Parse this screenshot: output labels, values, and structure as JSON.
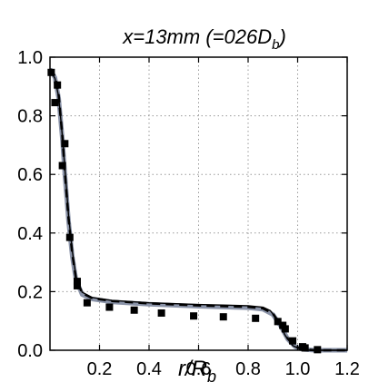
{
  "chart_data": {
    "type": "line",
    "title": {
      "main": "x=13mm (=026D",
      "sub": "b",
      "close": ")"
    },
    "xlabel": {
      "main": "r/R",
      "sub": "b"
    },
    "ylabel": "",
    "xlim": [
      0.0,
      1.2
    ],
    "ylim": [
      0.0,
      1.0
    ],
    "x_ticks": [
      0.2,
      0.4,
      0.6,
      0.8,
      1.0,
      1.2
    ],
    "x_tick_labels": [
      "0.2",
      "0.4",
      "0.6",
      "0.8",
      "1.0",
      "1.2"
    ],
    "y_ticks": [
      0.0,
      0.2,
      0.4,
      0.6,
      0.8,
      1.0
    ],
    "y_tick_labels": [
      "0.0",
      "0.2",
      "0.4",
      "0.6",
      "0.8",
      "1.0"
    ],
    "grid": true,
    "series": [
      {
        "style": "scatter-square",
        "color": "#000000",
        "points": [
          [
            0.005,
            0.948
          ],
          [
            0.02,
            0.845
          ],
          [
            0.03,
            0.905
          ],
          [
            0.05,
            0.63
          ],
          [
            0.06,
            0.705
          ],
          [
            0.08,
            0.385
          ],
          [
            0.11,
            0.22
          ],
          [
            0.11,
            0.235
          ],
          [
            0.15,
            0.162
          ],
          [
            0.24,
            0.147
          ],
          [
            0.34,
            0.137
          ],
          [
            0.45,
            0.127
          ],
          [
            0.58,
            0.117
          ],
          [
            0.7,
            0.114
          ],
          [
            0.83,
            0.109
          ],
          [
            0.92,
            0.098
          ],
          [
            0.94,
            0.085
          ],
          [
            0.95,
            0.073
          ],
          [
            0.98,
            0.032
          ],
          [
            1.02,
            0.012
          ],
          [
            1.03,
            0.008
          ],
          [
            1.08,
            0.002
          ]
        ]
      },
      {
        "style": "solid-thick",
        "color": "#8a93a8",
        "points": [
          [
            0.0,
            0.96
          ],
          [
            0.02,
            0.93
          ],
          [
            0.035,
            0.86
          ],
          [
            0.05,
            0.72
          ],
          [
            0.06,
            0.6
          ],
          [
            0.075,
            0.44
          ],
          [
            0.09,
            0.32
          ],
          [
            0.105,
            0.24
          ],
          [
            0.13,
            0.19
          ],
          [
            0.17,
            0.175
          ],
          [
            0.25,
            0.165
          ],
          [
            0.4,
            0.157
          ],
          [
            0.6,
            0.15
          ],
          [
            0.8,
            0.145
          ],
          [
            0.86,
            0.14
          ],
          [
            0.9,
            0.122
          ],
          [
            0.93,
            0.085
          ],
          [
            0.96,
            0.038
          ],
          [
            0.99,
            0.012
          ],
          [
            1.02,
            0.003
          ],
          [
            1.07,
            0.0
          ],
          [
            1.2,
            0.0
          ]
        ]
      },
      {
        "style": "dashed",
        "color": "#000000",
        "points": [
          [
            0.0,
            0.96
          ],
          [
            0.02,
            0.935
          ],
          [
            0.035,
            0.87
          ],
          [
            0.05,
            0.73
          ],
          [
            0.06,
            0.61
          ],
          [
            0.075,
            0.45
          ],
          [
            0.09,
            0.33
          ],
          [
            0.105,
            0.245
          ],
          [
            0.13,
            0.195
          ],
          [
            0.17,
            0.178
          ],
          [
            0.25,
            0.168
          ],
          [
            0.4,
            0.16
          ],
          [
            0.6,
            0.153
          ],
          [
            0.8,
            0.148
          ],
          [
            0.86,
            0.143
          ],
          [
            0.9,
            0.125
          ],
          [
            0.93,
            0.088
          ],
          [
            0.96,
            0.04
          ],
          [
            0.99,
            0.013
          ],
          [
            1.02,
            0.003
          ],
          [
            1.07,
            0.0
          ],
          [
            1.2,
            0.0
          ]
        ]
      },
      {
        "style": "solid-thin",
        "color": "#000000",
        "points": [
          [
            0.0,
            0.955
          ],
          [
            0.02,
            0.928
          ],
          [
            0.035,
            0.865
          ],
          [
            0.05,
            0.73
          ],
          [
            0.06,
            0.62
          ],
          [
            0.075,
            0.46
          ],
          [
            0.09,
            0.34
          ],
          [
            0.105,
            0.25
          ],
          [
            0.13,
            0.198
          ],
          [
            0.17,
            0.18
          ],
          [
            0.25,
            0.17
          ],
          [
            0.4,
            0.162
          ],
          [
            0.6,
            0.156
          ],
          [
            0.8,
            0.152
          ],
          [
            0.86,
            0.147
          ],
          [
            0.89,
            0.135
          ],
          [
            0.92,
            0.1
          ],
          [
            0.95,
            0.05
          ],
          [
            0.98,
            0.016
          ],
          [
            1.01,
            0.004
          ],
          [
            1.06,
            0.0
          ],
          [
            1.2,
            0.0
          ]
        ]
      }
    ]
  }
}
